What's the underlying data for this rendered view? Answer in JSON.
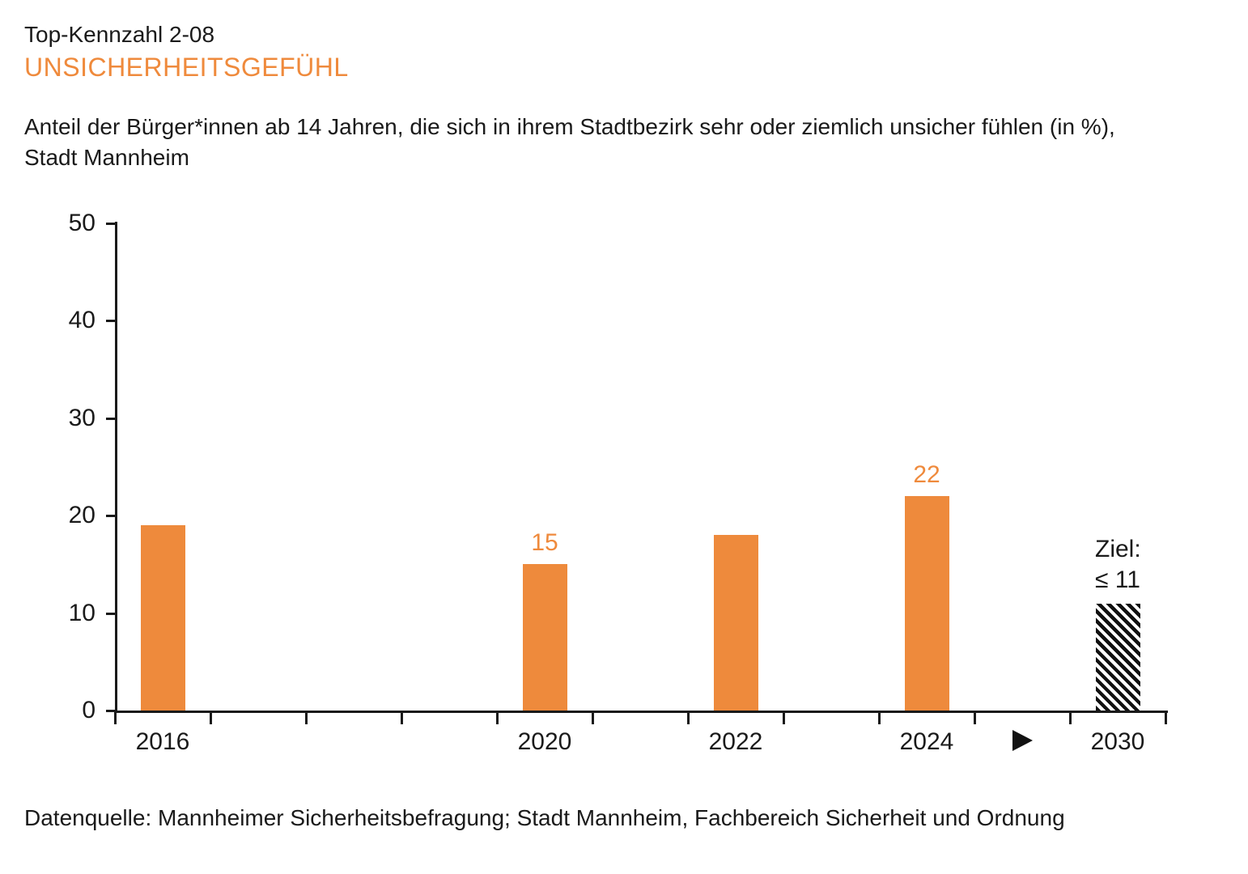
{
  "header": {
    "kicker": "Top-Kennzahl 2-08",
    "title": "UNSICHERHEITSGEFÜHL"
  },
  "description": {
    "line1": "Anteil der Bürger*innen ab 14 Jahren, die sich in ihrem Stadtbezirk sehr oder ziemlich unsicher fühlen (in %),",
    "line2": "Stadt Mannheim"
  },
  "footer": {
    "text": "Datenquelle: Mannheimer Sicherheitsbefragung; Stadt Mannheim, Fachbereich Sicherheit und Ordnung"
  },
  "colors": {
    "bar_orange": "#EE8A3C",
    "title_orange": "#EF8A3C",
    "axis_black": "#1A1A1A",
    "hatch_black": "#111111"
  },
  "chart_data": {
    "type": "bar",
    "title": "UNSICHERHEITSGEFÜHL",
    "subtitle": "Anteil der Bürger*innen ab 14 Jahren, die sich in ihrem Stadtbezirk sehr oder ziemlich unsicher fühlen (in %), Stadt Mannheim",
    "source": "Datenquelle: Mannheimer Sicherheitsbefragung; Stadt Mannheim, Fachbereich Sicherheit und Ordnung",
    "xlabel": "",
    "ylabel": "",
    "ylim": [
      0,
      50
    ],
    "yticks": [
      0,
      10,
      20,
      30,
      40,
      50
    ],
    "grid": false,
    "legend": false,
    "categories": [
      "2016",
      "2020",
      "2022",
      "2024",
      "2030"
    ],
    "values": [
      19,
      15,
      18,
      22,
      11
    ],
    "x_slots": [
      "2016",
      "2017",
      "2018",
      "2019",
      "2020",
      "2021",
      "2022",
      "2023",
      "2024",
      "",
      "2030"
    ],
    "bars": [
      {
        "category": "2016",
        "slot": 0,
        "value": 19,
        "label": "",
        "style": "solid"
      },
      {
        "category": "2020",
        "slot": 4,
        "value": 15,
        "label": "15",
        "style": "solid"
      },
      {
        "category": "2022",
        "slot": 6,
        "value": 18,
        "label": "",
        "style": "solid"
      },
      {
        "category": "2024",
        "slot": 8,
        "value": 22,
        "label": "22",
        "style": "solid"
      },
      {
        "category": "2030",
        "slot": 10,
        "value": 11,
        "label": "",
        "style": "hatched",
        "annotation_line1": "Ziel:",
        "annotation_line2": "≤ 11"
      }
    ],
    "x_axis_labels": [
      {
        "slot": 0,
        "text": "2016"
      },
      {
        "slot": 4,
        "text": "2020"
      },
      {
        "slot": 6,
        "text": "2022"
      },
      {
        "slot": 8,
        "text": "2024"
      },
      {
        "slot": 9,
        "text": "",
        "marker": "play-arrow"
      },
      {
        "slot": 10,
        "text": "2030"
      }
    ]
  }
}
